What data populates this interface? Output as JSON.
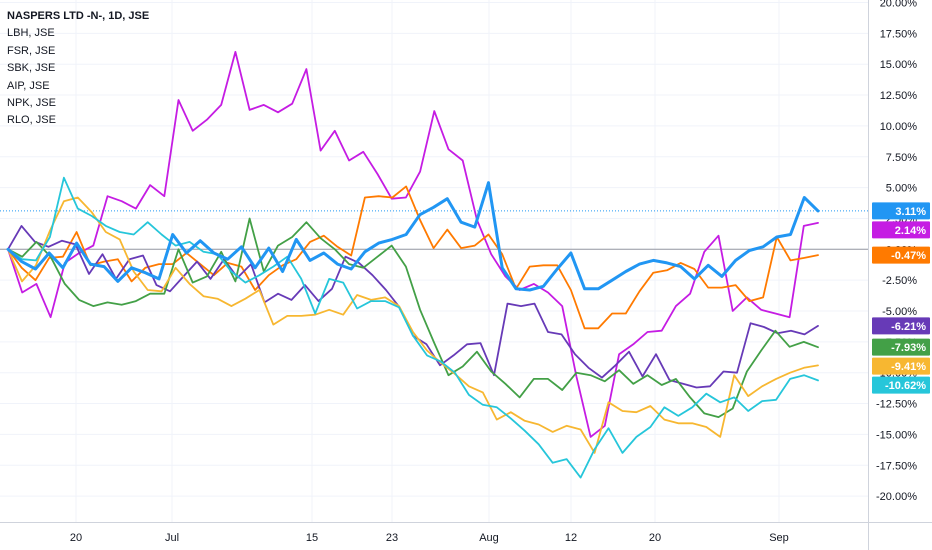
{
  "chart_data": {
    "type": "line",
    "title": "NASPERS LTD -N-, 1D, JSE",
    "symbols": [
      "LBH, JSE",
      "FSR, JSE",
      "SBK, JSE",
      "AIP, JSE",
      "NPK, JSE",
      "RLO, JSE"
    ],
    "x_labels": [
      "20",
      "Jul",
      "15",
      "23",
      "Aug",
      "12",
      "20",
      "Sep"
    ],
    "y_ticks": [
      "20.00%",
      "17.50%",
      "15.00%",
      "12.50%",
      "10.00%",
      "7.50%",
      "5.00%",
      "2.50%",
      "0.00%",
      "-2.50%",
      "-5.00%",
      "-7.50%",
      "-10.00%",
      "-12.50%",
      "-15.00%",
      "-17.50%",
      "-20.00%"
    ],
    "ylim": [
      -22,
      20
    ],
    "ylabel_unit": "%",
    "grid": true,
    "colors": {
      "background": "#ffffff",
      "grid": "#f0f3fa",
      "axis_text": "#131722",
      "axis_line": "#cfd3dc",
      "zero_line": "#9598a1",
      "price_line": "#2196f3"
    },
    "series": [
      {
        "color": "#2196f3",
        "bold": true,
        "label": "3.11%",
        "values": [
          0,
          -1,
          -1.6,
          -0.3,
          -1.5,
          0.5,
          -1.2,
          -1.4,
          -2.6,
          -1.5,
          -1.9,
          -2.4,
          1.2,
          -0.3,
          0.7,
          -0.3,
          -0.8,
          0.2,
          -1.5,
          0.1,
          -1.8,
          0.8,
          -0.9,
          -0.3,
          -1.2,
          -1.6,
          -0.2,
          0.5,
          0.8,
          1.2,
          2.8,
          3.4,
          4.1,
          2.2,
          1.8,
          5.4,
          -1.5,
          -3.2,
          -3.3,
          -3,
          -1.6,
          -0.3,
          -3.2,
          -3.2,
          -2.5,
          -1.8,
          -1.2,
          -0.9,
          -1.1,
          -1.4,
          -2.4,
          -1.3,
          -2.2,
          -0.9,
          -0.1,
          0.2,
          1.0,
          1.2,
          4.2,
          3.11
        ]
      },
      {
        "color": "#c51ce3",
        "label": "2.14%",
        "values": [
          0,
          -3.5,
          -2.8,
          -5.5,
          -1.1,
          -0.3,
          0.3,
          4.3,
          3.9,
          3.3,
          5.2,
          4.3,
          12.1,
          9.6,
          10.5,
          11.7,
          16,
          11.3,
          11.7,
          11.1,
          11.8,
          14.6,
          8.0,
          9.6,
          7.2,
          7.9,
          6.1,
          4.1,
          4.2,
          6.3,
          11.2,
          8.1,
          7.2,
          2.4,
          -0.4,
          -2.2,
          -3.3,
          -2.8,
          -3.5,
          -4.6,
          -10.3,
          -15.2,
          -14.3,
          -8.5,
          -7.7,
          -6.7,
          -6.6,
          -4.6,
          -3.6,
          -0.2,
          1.1,
          -5.0,
          -3.9,
          -4.9,
          -5.2,
          -5.5,
          1.9,
          2.14
        ]
      },
      {
        "color": "#ff7a00",
        "label": "-0.47%",
        "values": [
          0,
          -1.5,
          -2.5,
          -0.7,
          -0.6,
          1.4,
          -1.3,
          -1.0,
          -0.8,
          -2.6,
          -1.5,
          -1.2,
          -1.2,
          -0.3,
          -1.2,
          -2.1,
          -1.1,
          -1.4,
          -3.3,
          -2.1,
          -1.3,
          -0.8,
          0.6,
          1.1,
          0.2,
          -0.5,
          4.2,
          4.3,
          4.2,
          5.1,
          2.4,
          0.1,
          1.6,
          0.1,
          0.3,
          1.2,
          -0.4,
          -3.2,
          -1.4,
          -1.3,
          -1.3,
          -3.3,
          -6.4,
          -6.4,
          -5.2,
          -5.2,
          -3.4,
          -1.9,
          -1.7,
          -1.1,
          -1.6,
          -3.1,
          -3.1,
          -2.9,
          -4.2,
          -3.9,
          1.0,
          -0.9,
          -0.7,
          -0.47
        ]
      },
      {
        "color": "#673ab7",
        "label": "-6.21%",
        "values": [
          0,
          1.9,
          0.6,
          0.2,
          0.7,
          0.4,
          -2.0,
          -0.4,
          -2.4,
          -0.8,
          -0.5,
          -2.9,
          -3.4,
          -2.2,
          -1.0,
          -2.4,
          -0.8,
          -2.3,
          -1.2,
          -4.3,
          -3.6,
          -4.1,
          -2.9,
          -4.2,
          -3.2,
          -0.6,
          -1.1,
          -2.1,
          -3.3,
          -4.7,
          -7.0,
          -7.7,
          -9.4,
          -8.6,
          -7.7,
          -7.6,
          -10.2,
          -4.4,
          -4.6,
          -4.4,
          -6.7,
          -6.9,
          -8.5,
          -9.6,
          -10.4,
          -9.4,
          -8.3,
          -10.3,
          -8.5,
          -10.6,
          -10.9,
          -11.2,
          -11.1,
          -9.9,
          -10.0,
          -6.0,
          -6.3,
          -6.8,
          -6.6,
          -6.9,
          -6.21
        ]
      },
      {
        "color": "#43a047",
        "label": "-7.93%",
        "values": [
          0,
          -0.6,
          0.6,
          -0.6,
          -2.8,
          -4.1,
          -4.6,
          -4.3,
          -4.5,
          -4.2,
          -3.6,
          -3.6,
          0,
          -2.7,
          -2.2,
          -0.2,
          -2.6,
          2.5,
          -1.8,
          0.3,
          1.0,
          2.2,
          0.9,
          0,
          -1.2,
          -1.5,
          -0.6,
          0.3,
          -1.4,
          -4.9,
          -7.6,
          -10.2,
          -9.5,
          -8.3,
          -9.9,
          -10.9,
          -12.0,
          -10.5,
          -10.5,
          -11.4,
          -10.0,
          -10.2,
          -10.7,
          -9.8,
          -10.9,
          -10.2,
          -11.0,
          -10.5,
          -12.0,
          -13.3,
          -13.6,
          -12.9,
          -9.9,
          -8.2,
          -6.6,
          -7.9,
          -7.5,
          -7.93
        ]
      },
      {
        "color": "#f7b731",
        "label": "-9.41%",
        "values": [
          0,
          -2.6,
          -1.3,
          1.5,
          3.9,
          4.2,
          3.0,
          1.4,
          0.8,
          -1.8,
          -3.3,
          -3.4,
          -1.5,
          -2.8,
          -3.8,
          -4.0,
          -4.6,
          -4.0,
          -3.3,
          -6.1,
          -5.4,
          -5.4,
          -5.3,
          -4.9,
          -5.3,
          -3.7,
          -4.1,
          -3.9,
          -4.6,
          -6.7,
          -8.2,
          -9.2,
          -10.1,
          -11.1,
          -11.6,
          -13.8,
          -13.2,
          -13.9,
          -14.2,
          -14.8,
          -14.3,
          -14.6,
          -16.5,
          -12.4,
          -13.1,
          -13.2,
          -12.7,
          -13.8,
          -14.1,
          -14.1,
          -14.4,
          -15.2,
          -10.2,
          -11.9,
          -11.1,
          -10.5,
          -10.0,
          -9.6,
          -9.41
        ]
      },
      {
        "color": "#26c6da",
        "label": "-10.62%",
        "values": [
          0,
          -0.8,
          -0.9,
          1.0,
          5.8,
          3.3,
          2.7,
          1.9,
          1.4,
          1.2,
          2.2,
          1.2,
          0.3,
          0.6,
          -0.2,
          -0.4,
          -1.8,
          -2.7,
          -2.1,
          -1.4,
          -0.6,
          -2.4,
          -5.2,
          -2.4,
          -2.7,
          -4.8,
          -4.2,
          -4.2,
          -4.7,
          -7.0,
          -8.6,
          -9.1,
          -10.0,
          -11.8,
          -12.6,
          -12.8,
          -13.7,
          -14.7,
          -15.8,
          -17.3,
          -17.0,
          -18.5,
          -16.2,
          -14.5,
          -16.5,
          -15.2,
          -14.4,
          -12.8,
          -13.5,
          -12.8,
          -11.7,
          -12.4,
          -12.0,
          -13.1,
          -12.3,
          -12.2,
          -10.5,
          -10.2,
          -10.62
        ]
      }
    ]
  }
}
